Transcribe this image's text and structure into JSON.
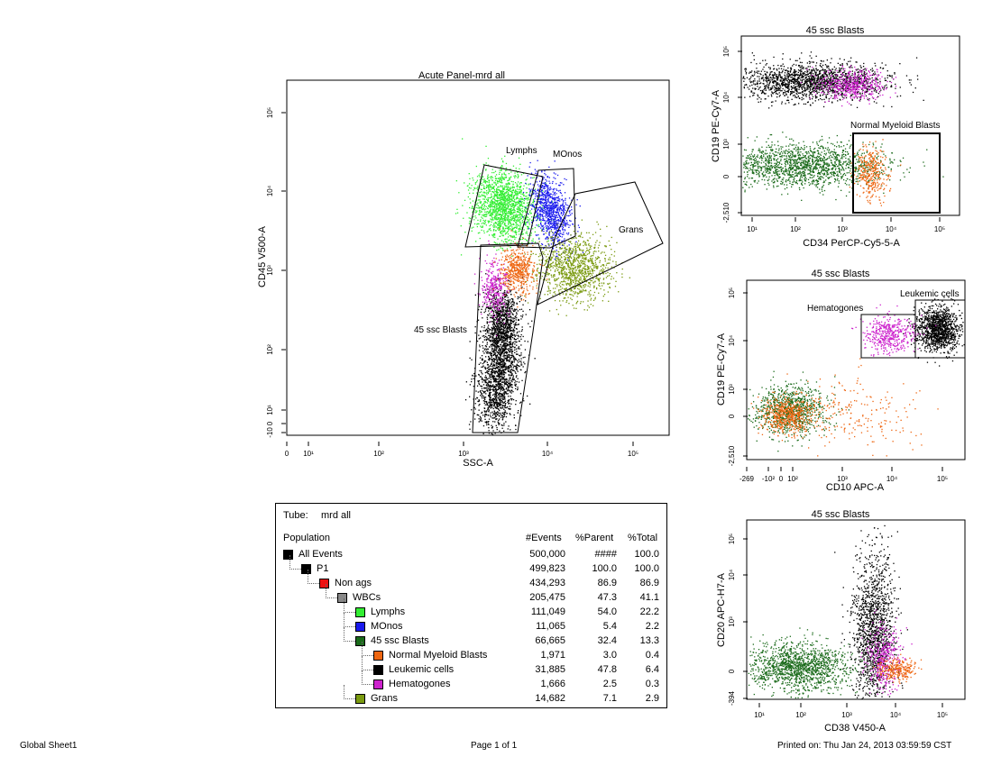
{
  "chart_data": [
    {
      "type": "scatter",
      "title": "Acute Panel-mrd all",
      "xlabel": "SSC-A",
      "ylabel": "CD45 V500-A",
      "x_ticks": [
        "0",
        "10¹",
        "10²",
        "10³",
        "10⁴",
        "10⁵"
      ],
      "y_ticks": [
        "-10",
        "0",
        "10¹",
        "10²",
        "10³",
        "10⁴",
        "10⁵"
      ],
      "gates": [
        "Lymphs",
        "MOnos",
        "Grans",
        "45 ssc Blasts"
      ],
      "populations": [
        {
          "name": "Lymphs",
          "color": "#33ee33"
        },
        {
          "name": "MOnos",
          "color": "#1a1aee"
        },
        {
          "name": "Grans",
          "color": "#8a9a10"
        },
        {
          "name": "Normal Myeloid Blasts",
          "color": "#ee6611"
        },
        {
          "name": "Leukemic cells",
          "color": "#000000"
        },
        {
          "name": "Hematogones",
          "color": "#cc22cc"
        }
      ]
    },
    {
      "type": "scatter",
      "title": "45 ssc Blasts",
      "xlabel": "CD34 PerCP-Cy5-5-A",
      "ylabel": "CD19 PE-Cy7-A",
      "x_ticks": [
        "10¹",
        "10²",
        "10³",
        "10⁴",
        "10⁵"
      ],
      "y_ticks": [
        "-2,510",
        "0",
        "10³",
        "10⁴",
        "10⁵"
      ],
      "gates": [
        "Normal Myeloid Blasts"
      ]
    },
    {
      "type": "scatter",
      "title": "45 ssc Blasts",
      "xlabel": "CD10 APC-A",
      "ylabel": "CD19 PE-Cy7-A",
      "x_ticks": [
        "-269",
        "-10²",
        "0",
        "10²",
        "10³",
        "10⁴",
        "10⁵"
      ],
      "y_ticks": [
        "-2,510",
        "0",
        "10³",
        "10⁴",
        "10⁵"
      ],
      "gates": [
        "Hematogones",
        "Leukemic cells"
      ]
    },
    {
      "type": "scatter",
      "title": "45 ssc Blasts",
      "xlabel": "CD38 V450-A",
      "ylabel": "CD20 APC-H7-A",
      "x_ticks": [
        "10¹",
        "10²",
        "10³",
        "10⁴",
        "10⁵"
      ],
      "y_ticks": [
        "-394",
        "0",
        "10³",
        "10⁴",
        "10⁵"
      ],
      "gates": []
    }
  ],
  "table": {
    "tube_label": "Tube:",
    "tube_value": "mrd all",
    "headers": [
      "Population",
      "#Events",
      "%Parent",
      "%Total"
    ],
    "rows": [
      {
        "name": "All Events",
        "events": "500,000",
        "parent": "####",
        "total": "100.0",
        "color": "#000000",
        "level": 0
      },
      {
        "name": "P1",
        "events": "499,823",
        "parent": "100.0",
        "total": "100.0",
        "color": "#000000",
        "level": 1
      },
      {
        "name": "Non ags",
        "events": "434,293",
        "parent": "86.9",
        "total": "86.9",
        "color": "#ee1111",
        "level": 2
      },
      {
        "name": "WBCs",
        "events": "205,475",
        "parent": "47.3",
        "total": "41.1",
        "color": "#888888",
        "level": 3
      },
      {
        "name": "Lymphs",
        "events": "111,049",
        "parent": "54.0",
        "total": "22.2",
        "color": "#33ee33",
        "level": 4
      },
      {
        "name": "MOnos",
        "events": "11,065",
        "parent": "5.4",
        "total": "2.2",
        "color": "#1a1aee",
        "level": 4
      },
      {
        "name": "45 ssc Blasts",
        "events": "66,665",
        "parent": "32.4",
        "total": "13.3",
        "color": "#1a6a1a",
        "level": 4
      },
      {
        "name": "Normal Myeloid Blasts",
        "events": "1,971",
        "parent": "3.0",
        "total": "0.4",
        "color": "#ee6611",
        "level": 5
      },
      {
        "name": "Leukemic cells",
        "events": "31,885",
        "parent": "47.8",
        "total": "6.4",
        "color": "#000000",
        "level": 5
      },
      {
        "name": "Hematogones",
        "events": "1,666",
        "parent": "2.5",
        "total": "0.3",
        "color": "#cc22cc",
        "level": 5
      },
      {
        "name": "Grans",
        "events": "14,682",
        "parent": "7.1",
        "total": "2.9",
        "color": "#7a9a10",
        "level": 4
      }
    ]
  },
  "footer": {
    "left": "Global Sheet1",
    "center": "Page 1 of 1",
    "right": "Printed on:  Thu Jan 24, 2013 03:59:59 CST"
  }
}
